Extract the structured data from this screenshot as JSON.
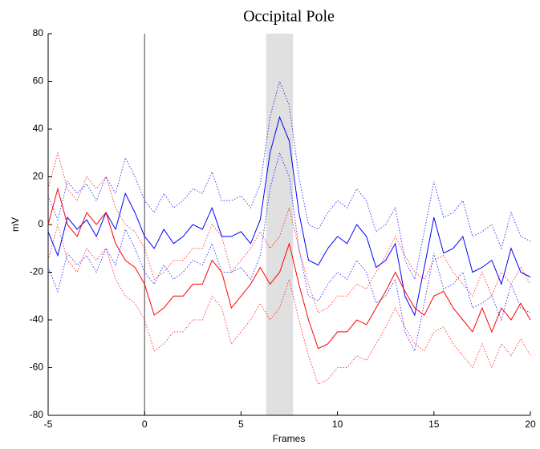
{
  "chart_data": {
    "type": "line",
    "title": "Occipital Pole",
    "xlabel": "Frames",
    "ylabel": "mV",
    "xlim": [
      -5,
      20
    ],
    "xticks": [
      -5,
      0,
      5,
      10,
      15,
      20
    ],
    "ylim": [
      -80,
      80
    ],
    "yticks": [
      -80,
      -60,
      -40,
      -20,
      0,
      20,
      40,
      60,
      80
    ],
    "vline": 0,
    "shaded_region": [
      6.3,
      7.7
    ],
    "x": [
      -5,
      -4.5,
      -4,
      -3.5,
      -3,
      -2.5,
      -2,
      -1.5,
      -1,
      -0.5,
      0,
      0.5,
      1,
      1.5,
      2,
      2.5,
      3,
      3.5,
      4,
      4.5,
      5,
      5.5,
      6,
      6.5,
      7,
      7.5,
      8,
      8.5,
      9,
      9.5,
      10,
      10.5,
      11,
      11.5,
      12,
      12.5,
      13,
      13.5,
      14,
      14.5,
      15,
      15.5,
      16,
      16.5,
      17,
      17.5,
      18,
      18.5,
      19,
      19.5,
      20
    ],
    "series": [
      {
        "color": "#0000ff",
        "dashed": true,
        "values": [
          12,
          2,
          18,
          13,
          17,
          10,
          20,
          13,
          28,
          20,
          10,
          5,
          13,
          7,
          10,
          15,
          13,
          22,
          10,
          10,
          12,
          7,
          17,
          45,
          60,
          50,
          20,
          0,
          -2,
          5,
          10,
          7,
          15,
          10,
          -3,
          0,
          7,
          -15,
          -23,
          -3,
          18,
          3,
          5,
          10,
          -5,
          -3,
          0,
          -10,
          5,
          -5,
          -7
        ]
      },
      {
        "color": "#0000ff",
        "dashed": true,
        "values": [
          -18,
          -28,
          -12,
          -17,
          -13,
          -20,
          -10,
          -17,
          -2,
          -10,
          -20,
          -25,
          -17,
          -23,
          -20,
          -15,
          -17,
          -8,
          -20,
          -20,
          -18,
          -23,
          -13,
          15,
          30,
          20,
          -10,
          -30,
          -32,
          -25,
          -20,
          -23,
          -15,
          -20,
          -33,
          -30,
          -23,
          -45,
          -53,
          -33,
          -12,
          -27,
          -25,
          -20,
          -35,
          -33,
          -30,
          -40,
          -25,
          -35,
          -37
        ]
      },
      {
        "color": "#ff0000",
        "dashed": true,
        "values": [
          15,
          30,
          15,
          10,
          20,
          15,
          20,
          7,
          0,
          -3,
          -10,
          -23,
          -20,
          -15,
          -15,
          -10,
          -10,
          0,
          -5,
          -20,
          -15,
          -10,
          -3,
          -10,
          -5,
          7,
          -10,
          -25,
          -37,
          -35,
          -30,
          -30,
          -25,
          -27,
          -20,
          -13,
          -5,
          -13,
          -20,
          -23,
          -15,
          -13,
          -20,
          -25,
          -30,
          -20,
          -30,
          -20,
          -25,
          -18,
          -25
        ]
      },
      {
        "color": "#ff0000",
        "dashed": true,
        "values": [
          -15,
          0,
          -15,
          -20,
          -10,
          -15,
          -10,
          -23,
          -30,
          -33,
          -40,
          -53,
          -50,
          -45,
          -45,
          -40,
          -40,
          -30,
          -35,
          -50,
          -45,
          -40,
          -33,
          -40,
          -35,
          -23,
          -40,
          -55,
          -67,
          -65,
          -60,
          -60,
          -55,
          -57,
          -50,
          -43,
          -35,
          -43,
          -50,
          -53,
          -45,
          -43,
          -50,
          -55,
          -60,
          -50,
          -60,
          -50,
          -55,
          -48,
          -55
        ]
      },
      {
        "color": "#0000ff",
        "dashed": false,
        "values": [
          -3,
          -13,
          3,
          -2,
          2,
          -5,
          5,
          -2,
          13,
          5,
          -5,
          -10,
          -2,
          -8,
          -5,
          0,
          -2,
          7,
          -5,
          -5,
          -3,
          -8,
          2,
          30,
          45,
          35,
          5,
          -15,
          -17,
          -10,
          -5,
          -8,
          0,
          -5,
          -18,
          -15,
          -8,
          -30,
          -38,
          -18,
          3,
          -12,
          -10,
          -5,
          -20,
          -18,
          -15,
          -25,
          -10,
          -20,
          -22
        ]
      },
      {
        "color": "#ff0000",
        "dashed": false,
        "values": [
          0,
          15,
          0,
          -5,
          5,
          0,
          5,
          -8,
          -15,
          -18,
          -25,
          -38,
          -35,
          -30,
          -30,
          -25,
          -25,
          -15,
          -20,
          -35,
          -30,
          -25,
          -18,
          -25,
          -20,
          -8,
          -25,
          -40,
          -52,
          -50,
          -45,
          -45,
          -40,
          -42,
          -35,
          -28,
          -20,
          -28,
          -35,
          -38,
          -30,
          -28,
          -35,
          -40,
          -45,
          -35,
          -45,
          -35,
          -40,
          -33,
          -40
        ]
      }
    ]
  }
}
